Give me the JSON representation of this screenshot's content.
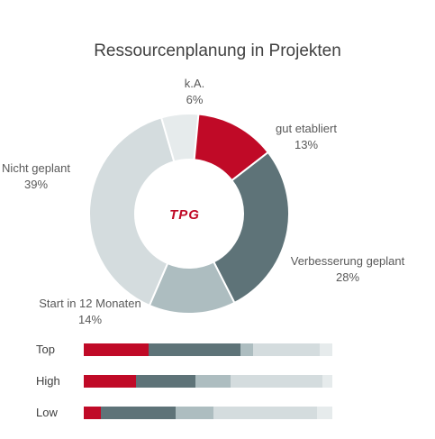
{
  "logo": {
    "text": "TPG",
    "color": "#c00a27"
  },
  "chart_data": [
    {
      "type": "pie",
      "title": "Ressourcenplanung in Projekten",
      "donut": true,
      "slices": [
        {
          "label": "k.A.",
          "value": 6,
          "display": "6%",
          "color": "#e6ebec"
        },
        {
          "label": "gut etabliert",
          "value": 13,
          "display": "13%",
          "color": "#c00a27"
        },
        {
          "label": "Verbesserung geplant",
          "value": 28,
          "display": "28%",
          "color": "#5e7378"
        },
        {
          "label": "Start in 12 Monaten",
          "value": 14,
          "display": "14%",
          "color": "#adbdc0"
        },
        {
          "label": "Nicht geplant",
          "value": 39,
          "display": "39%",
          "color": "#d4dcde"
        }
      ]
    },
    {
      "type": "bar",
      "stacked": true,
      "orientation": "horizontal",
      "categories": [
        "Top",
        "High",
        "Low"
      ],
      "series": [
        {
          "values": [
            26,
            21,
            7
          ],
          "color": "#c00a27"
        },
        {
          "values": [
            37,
            24,
            30
          ],
          "color": "#5e7378"
        },
        {
          "values": [
            5,
            14,
            15
          ],
          "color": "#adbdc0"
        },
        {
          "values": [
            27,
            37,
            42
          ],
          "color": "#d4dcde"
        },
        {
          "values": [
            5,
            4,
            6
          ],
          "color": "#e6ebec"
        }
      ]
    }
  ]
}
